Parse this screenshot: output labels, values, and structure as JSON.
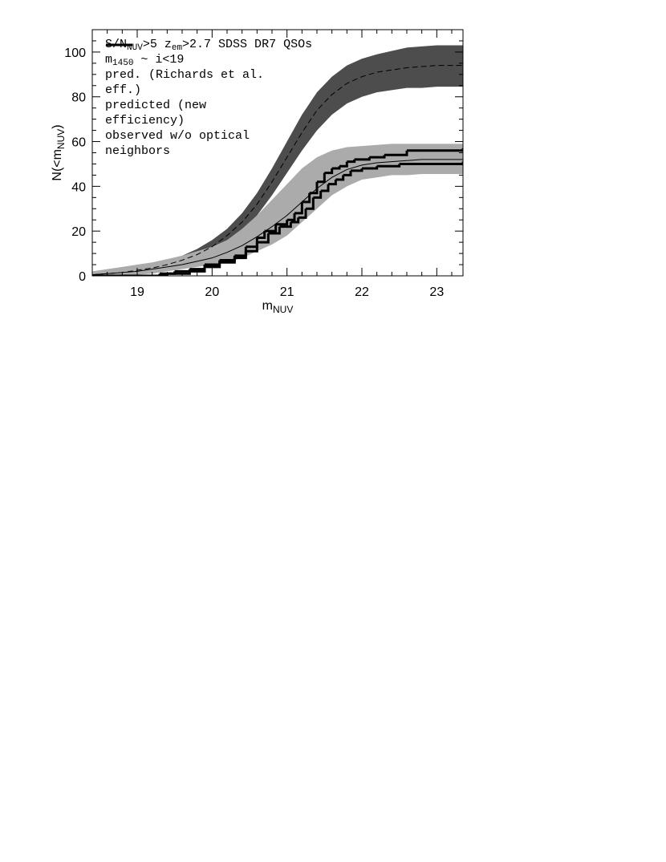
{
  "chart_data": {
    "type": "line",
    "annotations": [
      [
        "S/N",
        "NUV",
        ">5 z",
        "em",
        ">2.7 SDSS DR7 QSOs"
      ],
      [
        "m",
        "1450",
        " ~ i<19"
      ]
    ],
    "xlabel": [
      "m",
      "NUV"
    ],
    "ylabel": [
      "N(<m",
      "NUV",
      ")"
    ],
    "xlim": [
      18.4,
      23.35
    ],
    "ylim": [
      0,
      110
    ],
    "xticks": [
      19,
      20,
      21,
      22,
      23
    ],
    "yticks": [
      0,
      20,
      40,
      60,
      80,
      100
    ],
    "xminorticks": [
      18.4,
      18.6,
      18.8,
      19.2,
      19.4,
      19.6,
      19.8,
      20.2,
      20.4,
      20.6,
      20.8,
      21.2,
      21.4,
      21.6,
      21.8,
      22.2,
      22.4,
      22.6,
      22.8,
      23.2
    ],
    "yminorticks": [
      5,
      10,
      15,
      25,
      30,
      35,
      45,
      50,
      55,
      65,
      70,
      75,
      85,
      90,
      95,
      105
    ],
    "x": [
      18.4,
      18.6,
      18.8,
      19.0,
      19.2,
      19.4,
      19.6,
      19.8,
      20.0,
      20.2,
      20.4,
      20.6,
      20.8,
      21.0,
      21.2,
      21.4,
      21.6,
      21.8,
      22.0,
      22.2,
      22.4,
      22.6,
      22.8,
      23.0,
      23.2,
      23.4
    ],
    "series": [
      {
        "kind": "band",
        "color": "#4d4d4d",
        "upper": [
          1,
          2,
          3,
          4,
          5,
          7,
          9,
          12,
          16,
          21,
          28,
          37,
          48,
          60,
          72,
          82,
          89,
          94,
          97,
          99,
          100.5,
          102,
          102.5,
          103,
          103,
          103
        ],
        "lower": [
          0,
          0,
          0.5,
          1.5,
          2.5,
          4,
          6,
          8,
          11,
          15,
          20,
          27,
          36,
          46,
          56,
          65,
          72,
          77,
          80,
          82,
          83,
          84,
          84,
          84.5,
          84.5,
          84.5
        ]
      },
      {
        "kind": "band",
        "color": "#ababab",
        "upper": [
          2,
          3,
          4,
          5,
          6,
          7.5,
          9,
          11,
          13,
          16,
          21,
          27,
          34,
          41,
          48,
          53,
          56,
          57.5,
          58,
          58.5,
          59,
          59,
          59,
          59,
          59,
          59
        ],
        "lower": [
          0,
          0,
          0,
          0.5,
          1,
          2,
          3,
          4,
          5,
          6,
          8,
          11,
          14,
          18,
          24,
          30,
          36,
          40,
          43,
          44,
          45,
          45,
          45.5,
          45.5,
          45.5,
          45.5
        ]
      },
      {
        "name": "pred. (Richards et al. eff.)",
        "kind": "line",
        "dash": true,
        "width": 1,
        "color": "#000000",
        "values": [
          0.5,
          1,
          1.5,
          2.5,
          3.5,
          5,
          7,
          9.5,
          13,
          18,
          24,
          32,
          42,
          53,
          64,
          74,
          81,
          86,
          89,
          91,
          92,
          93,
          93.5,
          94,
          94,
          94
        ]
      },
      {
        "name": "predicted (new efficiency)",
        "kind": "line",
        "dash": false,
        "width": 1,
        "color": "#000000",
        "values": [
          0.5,
          1,
          1.5,
          2,
          3,
          4,
          5,
          6.5,
          8,
          10.5,
          13.5,
          17.5,
          22,
          27,
          33,
          39,
          44,
          47.5,
          49.5,
          50.5,
          51,
          51.5,
          52,
          52,
          52,
          52
        ]
      },
      {
        "name": "observed w/o optical neighbors",
        "kind": "step",
        "width": 3,
        "color": "#000000",
        "x": [
          18.4,
          19.3,
          19.5,
          19.7,
          19.9,
          20.1,
          20.3,
          20.45,
          20.6,
          20.7,
          20.85,
          21.0,
          21.1,
          21.2,
          21.3,
          21.4,
          21.5,
          21.6,
          21.7,
          21.8,
          21.9,
          22.1,
          22.3,
          22.6,
          23.35,
          23.4
        ],
        "values": [
          0,
          1,
          2,
          3,
          5,
          7,
          9,
          13,
          17,
          20,
          23,
          25,
          28,
          33,
          37,
          42,
          46,
          48,
          49,
          51,
          52,
          53,
          54,
          56,
          57,
          57
        ]
      },
      {
        "kind": "step",
        "width": 3,
        "color": "#000000",
        "x": [
          18.4,
          19.4,
          19.7,
          19.9,
          20.1,
          20.3,
          20.45,
          20.6,
          20.75,
          20.9,
          21.05,
          21.15,
          21.25,
          21.35,
          21.45,
          21.55,
          21.65,
          21.75,
          21.85,
          22.0,
          22.2,
          22.5,
          22.9,
          23.35,
          23.4
        ],
        "values": [
          0,
          1,
          2,
          4,
          6,
          8,
          11,
          15,
          19,
          22,
          24,
          26,
          30,
          35,
          38,
          41,
          43,
          45,
          47,
          48,
          49,
          50,
          50,
          51,
          51
        ]
      }
    ]
  }
}
